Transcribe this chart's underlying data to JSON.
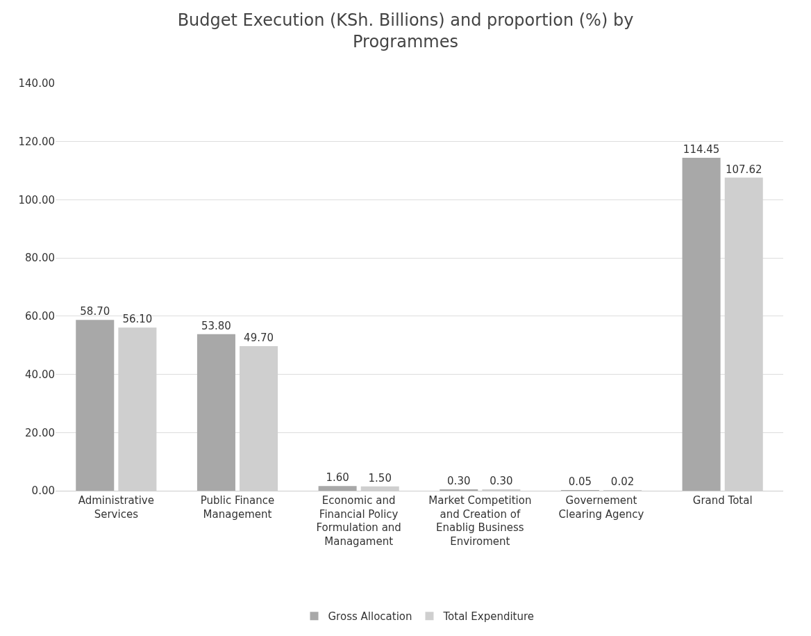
{
  "chart_data": {
    "type": "bar",
    "title": "Budget Execution (KSh. Billions) and proportion (%) by Programmes",
    "categories": [
      "Administrative Services",
      "Public Finance Management",
      "Economic and Financial Policy Formulation and Managament",
      "Market Competition and Creation of Enablig Business Enviroment",
      "Governement Clearing Agency",
      "Grand Total"
    ],
    "series": [
      {
        "name": "Gross Allocation",
        "color": "#a8a8a8",
        "values": [
          58.7,
          53.8,
          1.6,
          0.3,
          0.05,
          114.45
        ],
        "value_labels": [
          "58.70",
          "53.80",
          "1.60",
          "0.30",
          "0.05",
          "114.45"
        ]
      },
      {
        "name": "Total Expenditure",
        "color": "#cfcfcf",
        "values": [
          56.1,
          49.7,
          1.5,
          0.3,
          0.02,
          107.62
        ],
        "value_labels": [
          "56.10",
          "49.70",
          "1.50",
          "0.30",
          "0.02",
          "107.62"
        ]
      }
    ],
    "ylim": [
      0,
      140
    ],
    "yticks": [
      {
        "value": 0,
        "label": "0.00"
      },
      {
        "value": 20,
        "label": "20.00"
      },
      {
        "value": 40,
        "label": "40.00"
      },
      {
        "value": 60,
        "label": "60.00"
      },
      {
        "value": 80,
        "label": "80.00"
      },
      {
        "value": 100,
        "label": "100.00"
      },
      {
        "value": 120,
        "label": "120.00"
      },
      {
        "value": 140,
        "label": "140.00"
      }
    ],
    "grid": "y",
    "legend": "bottom"
  }
}
